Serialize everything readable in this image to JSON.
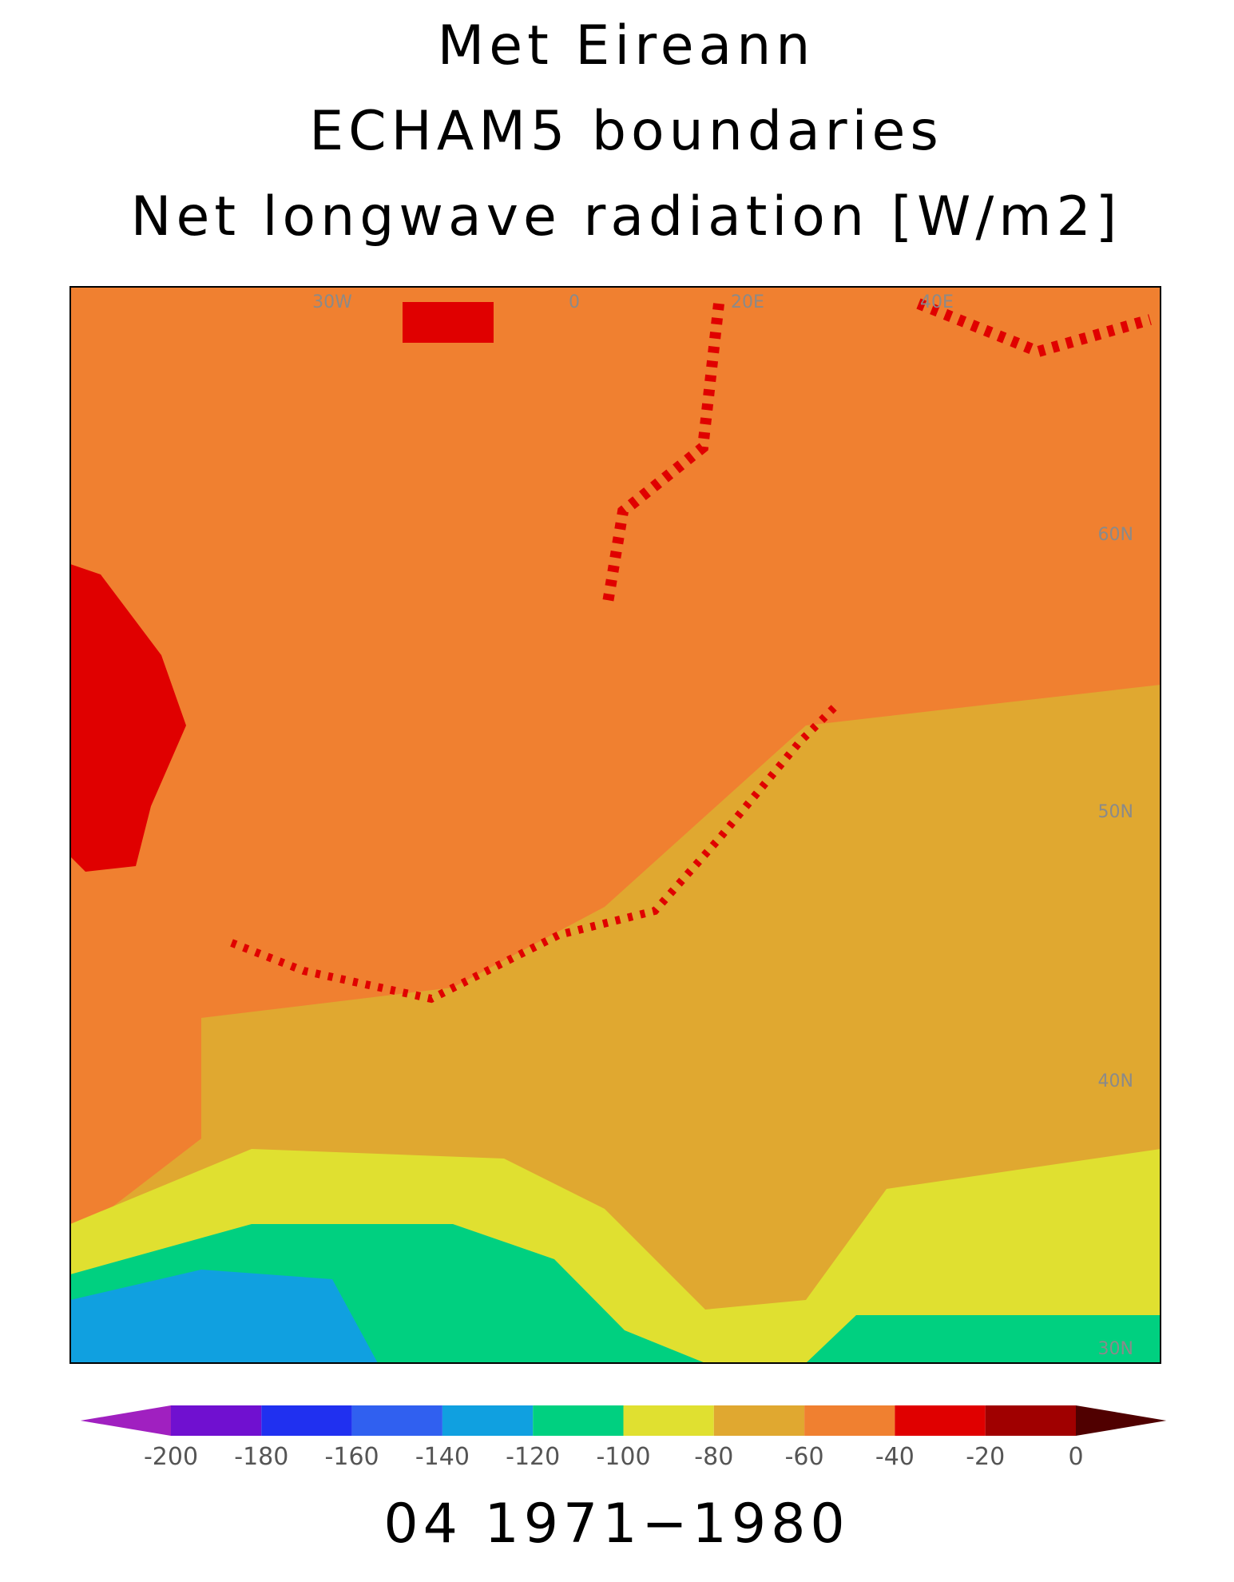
{
  "header": {
    "title_lines": [
      "Met Eireann",
      "ECHAM5 boundaries",
      "Net longwave radiation [W/m2]"
    ]
  },
  "map": {
    "graticule_labels": [
      "30W",
      "0",
      "20E",
      "40E",
      "60N",
      "50N",
      "40N",
      "30N"
    ]
  },
  "colorbar": {
    "ticks": [
      -200,
      -180,
      -160,
      -140,
      -120,
      -100,
      -80,
      -60,
      -40,
      -20,
      0
    ],
    "colors": [
      "#a020c0",
      "#7010d0",
      "#2030f0",
      "#3060f0",
      "#10a0e0",
      "#00d080",
      "#e0e030",
      "#e0a830",
      "#f08030",
      "#e00000",
      "#a00000",
      "#500000"
    ]
  },
  "footer": {
    "period": "04 1971−1980"
  }
}
